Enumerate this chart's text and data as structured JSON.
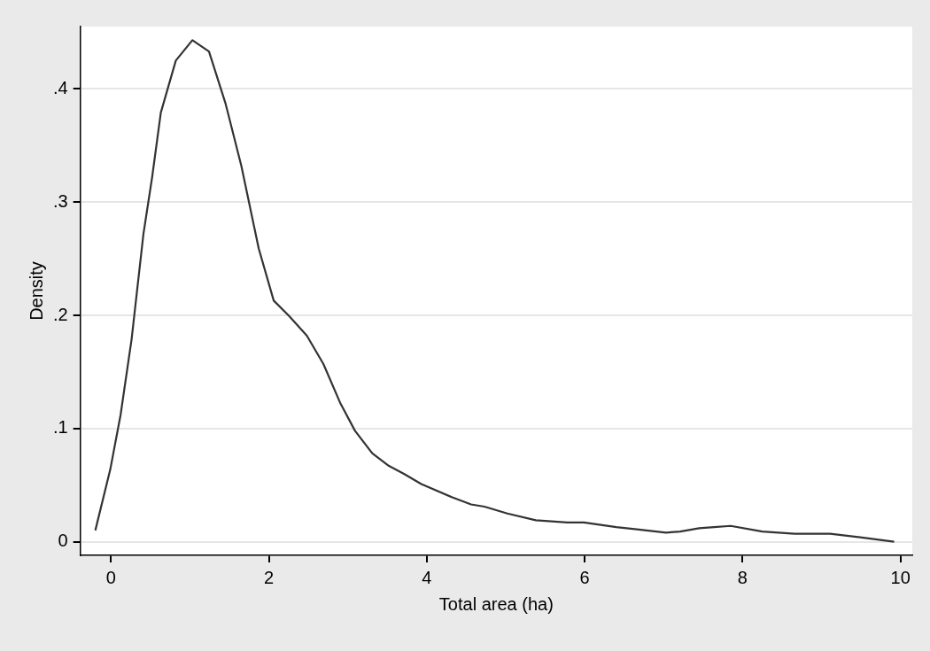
{
  "chart_data": {
    "type": "line",
    "xlabel": "Total area (ha)",
    "ylabel": "Density",
    "xlim": [
      -0.39,
      10.15
    ],
    "ylim": [
      -0.012,
      0.455
    ],
    "xticks": [
      0,
      2,
      4,
      6,
      8,
      10
    ],
    "yticks": [
      0,
      {
        "value": 0.1,
        "label": ".1"
      },
      {
        "value": 0.2,
        "label": ".2"
      },
      {
        "value": 0.3,
        "label": ".3"
      },
      {
        "value": 0.4,
        "label": ".4"
      }
    ],
    "grid": "y",
    "legend": false,
    "marker": "none",
    "line_style": "solid",
    "series": [
      {
        "color": "#333333",
        "x": [
          -0.2,
          -0.01,
          0.12,
          0.26,
          0.41,
          0.52,
          0.63,
          0.82,
          1.03,
          1.24,
          1.45,
          1.65,
          1.87,
          2.06,
          2.26,
          2.48,
          2.69,
          2.9,
          3.09,
          3.31,
          3.52,
          3.71,
          3.93,
          4.33,
          4.56,
          4.73,
          5.02,
          5.38,
          5.78,
          5.99,
          6.4,
          6.66,
          7.03,
          7.21,
          7.45,
          7.64,
          7.85,
          8.25,
          8.66,
          9.11,
          9.49,
          9.92
        ],
        "values": [
          0.01,
          0.064,
          0.112,
          0.179,
          0.272,
          0.322,
          0.379,
          0.425,
          0.443,
          0.433,
          0.387,
          0.332,
          0.259,
          0.213,
          0.199,
          0.182,
          0.157,
          0.123,
          0.098,
          0.078,
          0.067,
          0.06,
          0.051,
          0.039,
          0.033,
          0.031,
          0.025,
          0.019,
          0.017,
          0.017,
          0.013,
          0.011,
          0.008,
          0.009,
          0.012,
          0.013,
          0.014,
          0.009,
          0.007,
          0.007,
          0.004,
          0
        ]
      }
    ]
  }
}
